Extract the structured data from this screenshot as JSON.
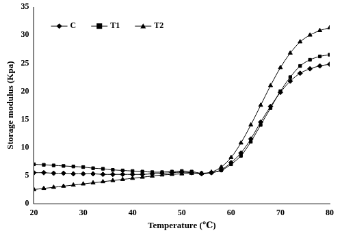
{
  "chart_data": {
    "type": "line",
    "x_label": "Temperature (℃)",
    "y_label": "Storage modulus (Kpa)",
    "x": [
      20,
      22,
      24,
      26,
      28,
      30,
      32,
      34,
      36,
      38,
      40,
      42,
      44,
      46,
      48,
      50,
      52,
      54,
      56,
      58,
      60,
      62,
      64,
      66,
      68,
      70,
      72,
      74,
      76,
      78,
      80
    ],
    "series": [
      {
        "name": "C",
        "color": "#000000",
        "marker": "diamond",
        "values": [
          5.5,
          5.5,
          5.4,
          5.4,
          5.3,
          5.3,
          5.3,
          5.2,
          5.2,
          5.2,
          5.2,
          5.2,
          5.3,
          5.4,
          5.5,
          5.6,
          5.5,
          5.3,
          5.5,
          6.0,
          7.3,
          9.0,
          11.5,
          14.5,
          17.3,
          19.8,
          21.8,
          23.2,
          24.0,
          24.5,
          24.8
        ]
      },
      {
        "name": "T1",
        "color": "#000000",
        "marker": "square",
        "values": [
          7.0,
          6.9,
          6.8,
          6.7,
          6.6,
          6.5,
          6.3,
          6.2,
          6.0,
          5.9,
          5.8,
          5.7,
          5.6,
          5.6,
          5.7,
          5.8,
          5.7,
          5.4,
          5.5,
          5.9,
          7.0,
          8.5,
          11.0,
          14.0,
          17.0,
          20.0,
          22.5,
          24.5,
          25.6,
          26.2,
          26.5
        ]
      },
      {
        "name": "T2",
        "color": "#000000",
        "marker": "triangle",
        "values": [
          2.5,
          2.7,
          2.9,
          3.1,
          3.3,
          3.5,
          3.7,
          3.9,
          4.1,
          4.3,
          4.5,
          4.7,
          4.9,
          5.1,
          5.2,
          5.3,
          5.4,
          5.4,
          5.6,
          6.5,
          8.2,
          10.8,
          14.0,
          17.5,
          21.0,
          24.2,
          26.8,
          28.8,
          30.0,
          30.8,
          31.3
        ]
      }
    ],
    "xlim": [
      20,
      80
    ],
    "xticks": [
      20,
      30,
      40,
      50,
      60,
      70,
      80
    ],
    "ylim": [
      0,
      35
    ],
    "yticks": [
      0,
      5,
      10,
      15,
      20,
      25,
      30,
      35
    ],
    "grid": false,
    "legend": "upper left"
  }
}
